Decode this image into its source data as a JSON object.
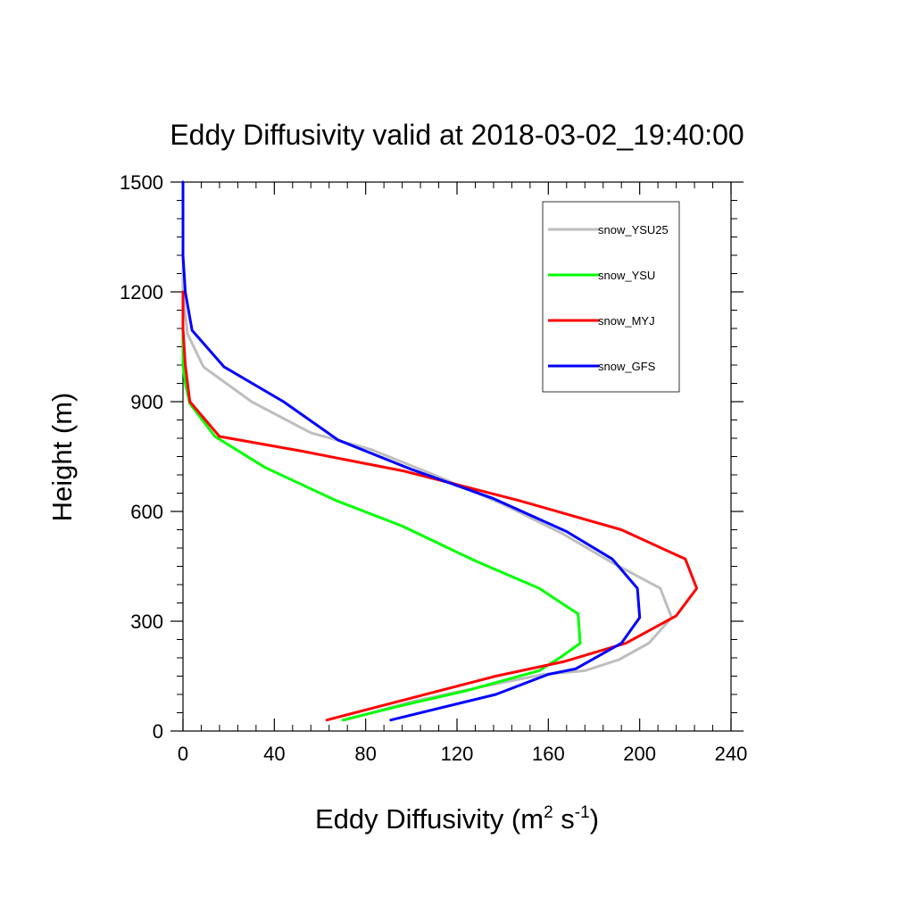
{
  "chart_data": {
    "type": "line",
    "title": "Eddy Diffusivity valid at 2018-03-02_19:40:00",
    "xlabel": "Eddy Diffusivity (m",
    "xlabel_sup1": "2",
    "xlabel_mid": " s",
    "xlabel_sup2": "-1",
    "xlabel_end": ")",
    "ylabel": "Height (m)",
    "xlim": [
      0,
      240
    ],
    "ylim": [
      0,
      1500
    ],
    "xticks": [
      0,
      40,
      80,
      120,
      160,
      200,
      240
    ],
    "yticks": [
      0,
      300,
      600,
      900,
      1200,
      1500
    ],
    "legend_position": "top-right",
    "series": [
      {
        "name": "snow_YSU25",
        "color": "#bebebe",
        "points": [
          [
            71,
            30
          ],
          [
            100,
            80
          ],
          [
            130,
            120
          ],
          [
            158,
            155
          ],
          [
            176,
            165
          ],
          [
            191,
            195
          ],
          [
            204,
            240
          ],
          [
            214,
            310
          ],
          [
            209,
            390
          ],
          [
            188,
            460
          ],
          [
            166,
            540
          ],
          [
            140,
            620
          ],
          [
            110,
            700
          ],
          [
            82,
            770
          ],
          [
            56,
            815
          ],
          [
            30,
            900
          ],
          [
            9,
            995
          ],
          [
            2,
            1085
          ],
          [
            0,
            1200
          ],
          [
            0,
            1500
          ]
        ]
      },
      {
        "name": "snow_YSU",
        "color": "#00ff00",
        "points": [
          [
            70,
            30
          ],
          [
            96,
            70
          ],
          [
            124,
            110
          ],
          [
            156,
            165
          ],
          [
            165,
            200
          ],
          [
            174,
            240
          ],
          [
            173,
            320
          ],
          [
            156,
            390
          ],
          [
            128,
            465
          ],
          [
            96,
            560
          ],
          [
            67,
            630
          ],
          [
            36,
            720
          ],
          [
            14,
            805
          ],
          [
            3,
            895
          ],
          [
            1,
            950
          ],
          [
            0,
            1000
          ],
          [
            0,
            1200
          ]
        ]
      },
      {
        "name": "snow_MYJ",
        "color": "#ff0000",
        "points": [
          [
            63,
            30
          ],
          [
            100,
            90
          ],
          [
            137,
            150
          ],
          [
            167,
            190
          ],
          [
            194,
            240
          ],
          [
            216,
            315
          ],
          [
            225,
            390
          ],
          [
            220,
            470
          ],
          [
            192,
            550
          ],
          [
            147,
            630
          ],
          [
            97,
            710
          ],
          [
            52,
            765
          ],
          [
            16,
            805
          ],
          [
            3,
            900
          ],
          [
            1,
            1000
          ],
          [
            0,
            1100
          ],
          [
            0,
            1200
          ]
        ]
      },
      {
        "name": "snow_GFS",
        "color": "#0000ff",
        "points": [
          [
            91,
            30
          ],
          [
            137,
            100
          ],
          [
            160,
            155
          ],
          [
            172,
            170
          ],
          [
            192,
            240
          ],
          [
            200,
            310
          ],
          [
            199,
            390
          ],
          [
            188,
            470
          ],
          [
            168,
            545
          ],
          [
            136,
            635
          ],
          [
            100,
            715
          ],
          [
            68,
            795
          ],
          [
            44,
            900
          ],
          [
            18,
            995
          ],
          [
            4,
            1095
          ],
          [
            1,
            1200
          ],
          [
            0,
            1300
          ],
          [
            0,
            1500
          ]
        ]
      }
    ]
  }
}
